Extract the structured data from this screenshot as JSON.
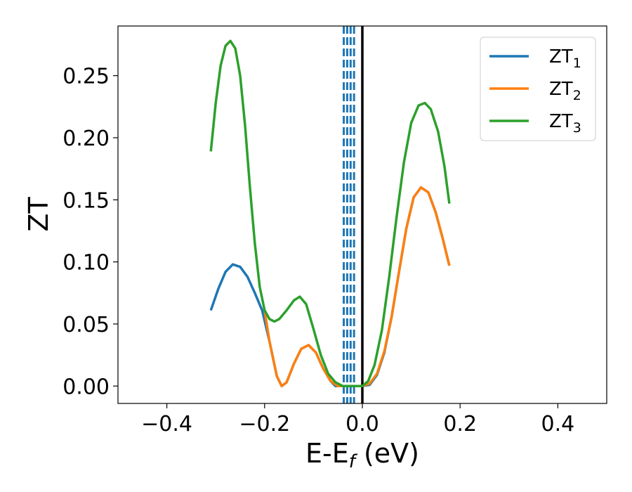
{
  "chart_data": {
    "type": "line",
    "xlabel_main": "E-E",
    "xlabel_sub": "f",
    "xlabel_unit": " (eV)",
    "ylabel": "ZT",
    "xlim": [
      -0.5,
      0.5
    ],
    "ylim": [
      -0.014,
      0.29
    ],
    "grid": false,
    "legend_position": "top-right",
    "xticks": [
      {
        "value": -0.4,
        "label": "−0.4"
      },
      {
        "value": -0.2,
        "label": "−0.2"
      },
      {
        "value": 0.0,
        "label": "0.0"
      },
      {
        "value": 0.2,
        "label": "0.2"
      },
      {
        "value": 0.4,
        "label": "0.4"
      }
    ],
    "yticks": [
      {
        "value": 0.0,
        "label": "0.00"
      },
      {
        "value": 0.05,
        "label": "0.05"
      },
      {
        "value": 0.1,
        "label": "0.10"
      },
      {
        "value": 0.15,
        "label": "0.15"
      },
      {
        "value": 0.2,
        "label": "0.20"
      },
      {
        "value": 0.25,
        "label": "0.25"
      }
    ],
    "series": [
      {
        "name_main": "ZT",
        "name_sub": "1",
        "color": "#1f77b4",
        "points": [
          [
            -0.31,
            0.061
          ],
          [
            -0.295,
            0.078
          ],
          [
            -0.28,
            0.092
          ],
          [
            -0.265,
            0.098
          ],
          [
            -0.25,
            0.096
          ],
          [
            -0.235,
            0.088
          ],
          [
            -0.22,
            0.075
          ],
          [
            -0.205,
            0.061
          ],
          [
            -0.19,
            0.036
          ],
          [
            -0.175,
            0.008
          ],
          [
            -0.165,
            0.0
          ],
          [
            -0.155,
            0.003
          ],
          [
            -0.14,
            0.018
          ],
          [
            -0.125,
            0.03
          ],
          [
            -0.11,
            0.033
          ],
          [
            -0.095,
            0.027
          ],
          [
            -0.08,
            0.014
          ],
          [
            -0.065,
            0.004
          ],
          [
            -0.055,
            0.0
          ],
          [
            -0.04,
            0.0
          ],
          [
            -0.02,
            0.0
          ],
          [
            0.0,
            0.0
          ],
          [
            0.015,
            0.001
          ],
          [
            0.03,
            0.009
          ],
          [
            0.045,
            0.027
          ],
          [
            0.06,
            0.056
          ],
          [
            0.075,
            0.092
          ],
          [
            0.09,
            0.127
          ],
          [
            0.105,
            0.152
          ],
          [
            0.12,
            0.16
          ],
          [
            0.135,
            0.156
          ],
          [
            0.15,
            0.14
          ],
          [
            0.165,
            0.118
          ],
          [
            0.178,
            0.097
          ]
        ]
      },
      {
        "name_main": "ZT",
        "name_sub": "2",
        "color": "#ff7f0e",
        "points": [
          [
            -0.2,
            0.061
          ],
          [
            -0.19,
            0.036
          ],
          [
            -0.175,
            0.008
          ],
          [
            -0.165,
            0.0
          ],
          [
            -0.155,
            0.003
          ],
          [
            -0.14,
            0.018
          ],
          [
            -0.125,
            0.03
          ],
          [
            -0.11,
            0.033
          ],
          [
            -0.095,
            0.027
          ],
          [
            -0.08,
            0.014
          ],
          [
            -0.065,
            0.004
          ],
          [
            -0.05,
            0.0
          ],
          [
            -0.03,
            0.0
          ],
          [
            -0.01,
            0.0
          ],
          [
            0.0,
            0.0
          ],
          [
            0.015,
            0.002
          ],
          [
            0.03,
            0.01
          ],
          [
            0.045,
            0.028
          ],
          [
            0.06,
            0.056
          ],
          [
            0.075,
            0.092
          ],
          [
            0.09,
            0.127
          ],
          [
            0.105,
            0.152
          ],
          [
            0.12,
            0.16
          ],
          [
            0.135,
            0.156
          ],
          [
            0.15,
            0.14
          ],
          [
            0.165,
            0.118
          ],
          [
            0.178,
            0.097
          ]
        ]
      },
      {
        "name_main": "ZT",
        "name_sub": "3",
        "color": "#2ca02c",
        "points": [
          [
            -0.31,
            0.189
          ],
          [
            -0.3,
            0.228
          ],
          [
            -0.29,
            0.258
          ],
          [
            -0.28,
            0.274
          ],
          [
            -0.27,
            0.278
          ],
          [
            -0.26,
            0.272
          ],
          [
            -0.25,
            0.25
          ],
          [
            -0.24,
            0.21
          ],
          [
            -0.23,
            0.16
          ],
          [
            -0.22,
            0.115
          ],
          [
            -0.21,
            0.08
          ],
          [
            -0.2,
            0.061
          ],
          [
            -0.19,
            0.054
          ],
          [
            -0.18,
            0.052
          ],
          [
            -0.17,
            0.054
          ],
          [
            -0.155,
            0.061
          ],
          [
            -0.14,
            0.069
          ],
          [
            -0.128,
            0.072
          ],
          [
            -0.115,
            0.066
          ],
          [
            -0.1,
            0.046
          ],
          [
            -0.085,
            0.025
          ],
          [
            -0.07,
            0.01
          ],
          [
            -0.055,
            0.003
          ],
          [
            -0.04,
            0.0
          ],
          [
            -0.02,
            0.0
          ],
          [
            0.0,
            0.0
          ],
          [
            0.012,
            0.004
          ],
          [
            0.025,
            0.017
          ],
          [
            0.04,
            0.045
          ],
          [
            0.055,
            0.088
          ],
          [
            0.07,
            0.136
          ],
          [
            0.085,
            0.18
          ],
          [
            0.1,
            0.212
          ],
          [
            0.115,
            0.226
          ],
          [
            0.128,
            0.228
          ],
          [
            0.14,
            0.223
          ],
          [
            0.155,
            0.205
          ],
          [
            0.168,
            0.177
          ],
          [
            0.178,
            0.147
          ]
        ]
      }
    ],
    "vertical_lines": [
      {
        "x": -0.038,
        "style": "dashed",
        "color": "#1f77b4"
      },
      {
        "x": -0.031,
        "style": "dashed",
        "color": "#1f77b4"
      },
      {
        "x": -0.024,
        "style": "dashed",
        "color": "#1f77b4"
      },
      {
        "x": -0.017,
        "style": "dashed",
        "color": "#1f77b4"
      },
      {
        "x": 0.0,
        "style": "solid",
        "color": "#000000"
      }
    ]
  }
}
